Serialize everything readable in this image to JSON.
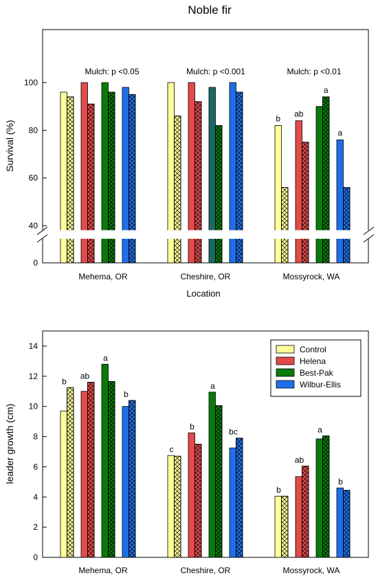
{
  "figure": {
    "title": "Noble fir"
  },
  "colors": {
    "Control": "#ffff99",
    "Helena": "#e34a4a",
    "Best-Pak": "#0a7a0a",
    "Wilbur-Ellis": "#1f6fe8",
    "Best-Pak (Cheshire, top panel)": "#1a6a64"
  },
  "chart_data": [
    {
      "type": "bar",
      "title": "Noble fir",
      "xlabel": "Location",
      "ylabel": "Survival (%)",
      "axis_break": {
        "from": 0,
        "to": 40
      },
      "ylim": [
        0,
        120
      ],
      "yticks": [
        0,
        40,
        60,
        80,
        100
      ],
      "grid": false,
      "categories": [
        "Mehema, OR",
        "Cheshire, OR",
        "Mossyrock, WA"
      ],
      "bar_style": "each treatment shown as a pair: open (plain) bar, then hatched bar",
      "series": [
        {
          "name": "Control",
          "values": [
            [
              96,
              94
            ],
            [
              100,
              86
            ],
            [
              82,
              56
            ]
          ],
          "letters": [
            "",
            "",
            "b"
          ]
        },
        {
          "name": "Helena",
          "values": [
            [
              100,
              91
            ],
            [
              100,
              92
            ],
            [
              84,
              75
            ]
          ],
          "letters": [
            "",
            "",
            "ab"
          ]
        },
        {
          "name": "Best-Pak",
          "values": [
            [
              100,
              96
            ],
            [
              98,
              82
            ],
            [
              90,
              94
            ]
          ],
          "letters": [
            "",
            "",
            "a"
          ]
        },
        {
          "name": "Wilbur-Ellis",
          "values": [
            [
              98,
              95
            ],
            [
              100,
              96
            ],
            [
              76,
              56
            ]
          ],
          "letters": [
            "",
            "",
            "a"
          ]
        }
      ],
      "annotations": [
        "Mulch: p <0.05",
        "Mulch: p <0.001",
        "Mulch: p <0.01"
      ]
    },
    {
      "type": "bar",
      "xlabel": "",
      "ylabel": "leader growth (cm)",
      "ylim": [
        0,
        15
      ],
      "yticks": [
        0,
        2,
        4,
        6,
        8,
        10,
        12,
        14
      ],
      "grid": false,
      "legend_position": "top-right",
      "categories": [
        "Mehema, OR",
        "Cheshire, OR",
        "Mossyrock, WA"
      ],
      "bar_style": "each treatment shown as a pair: open (plain) bar, then hatched bar",
      "series": [
        {
          "name": "Control",
          "values": [
            [
              9.7,
              11.25
            ],
            [
              6.75,
              6.7
            ],
            [
              4.05,
              4.05
            ]
          ],
          "letters": [
            "b",
            "c",
            "b"
          ]
        },
        {
          "name": "Helena",
          "values": [
            [
              11.0,
              11.6
            ],
            [
              8.25,
              7.5
            ],
            [
              5.35,
              6.05
            ]
          ],
          "letters": [
            "ab",
            "b",
            "ab"
          ]
        },
        {
          "name": "Best-Pak",
          "values": [
            [
              12.8,
              11.65
            ],
            [
              10.95,
              10.05
            ],
            [
              7.85,
              8.05
            ]
          ],
          "letters": [
            "a",
            "a",
            "a"
          ]
        },
        {
          "name": "Wilbur-Ellis",
          "values": [
            [
              10.0,
              10.4
            ],
            [
              7.25,
              7.9
            ],
            [
              4.6,
              4.45
            ]
          ],
          "letters": [
            "b",
            "bc",
            "b"
          ]
        }
      ],
      "legend": [
        "Control",
        "Helena",
        "Best-Pak",
        "Wilbur-Ellis"
      ]
    }
  ]
}
